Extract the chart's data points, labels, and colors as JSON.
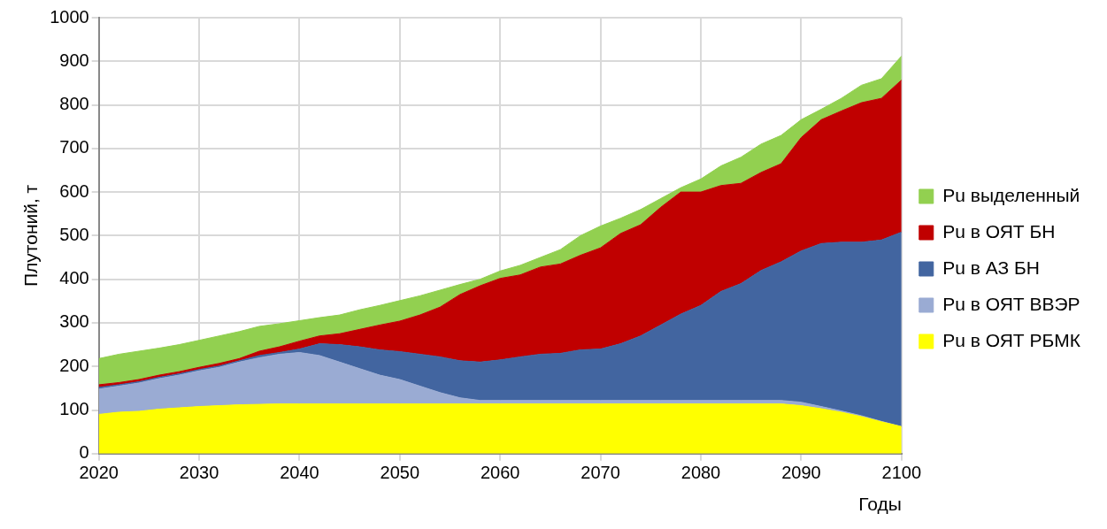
{
  "chart_data": {
    "type": "area",
    "stacked": true,
    "xlabel": "Годы",
    "ylabel": "Плутоний, т",
    "x": [
      2020,
      2022,
      2024,
      2026,
      2028,
      2030,
      2032,
      2034,
      2036,
      2038,
      2040,
      2042,
      2044,
      2046,
      2048,
      2050,
      2052,
      2054,
      2056,
      2058,
      2060,
      2062,
      2064,
      2066,
      2068,
      2070,
      2072,
      2074,
      2076,
      2078,
      2080,
      2082,
      2084,
      2086,
      2088,
      2090,
      2092,
      2094,
      2096,
      2098,
      2100
    ],
    "series": [
      {
        "name": "Pu в ОЯТ РБМК",
        "color": "#ffff00",
        "values": [
          90,
          95,
          97,
          102,
          105,
          108,
          110,
          112,
          113,
          114,
          114,
          114,
          114,
          114,
          114,
          114,
          114,
          114,
          114,
          114,
          114,
          114,
          114,
          114,
          114,
          114,
          114,
          114,
          114,
          114,
          114,
          114,
          114,
          114,
          114,
          110,
          103,
          95,
          85,
          73,
          62
        ]
      },
      {
        "name": "Pu в ОЯТ ВВЭР",
        "color": "#9aabd3",
        "values": [
          58,
          60,
          65,
          70,
          75,
          82,
          88,
          98,
          107,
          114,
          118,
          111,
          96,
          81,
          66,
          56,
          41,
          26,
          14,
          8,
          8,
          8,
          8,
          8,
          8,
          8,
          8,
          8,
          8,
          8,
          8,
          8,
          8,
          8,
          8,
          8,
          5,
          3,
          2,
          1,
          0
        ]
      },
      {
        "name": "Pu в АЗ БН",
        "color": "#4265a0",
        "values": [
          4,
          3,
          3,
          3,
          3,
          3,
          3,
          3,
          5,
          4,
          8,
          27,
          40,
          50,
          58,
          64,
          73,
          82,
          85,
          88,
          93,
          100,
          106,
          108,
          116,
          118,
          130,
          148,
          173,
          198,
          218,
          250,
          268,
          298,
          318,
          347,
          374,
          387,
          398,
          416,
          446
        ]
      },
      {
        "name": "Pu в ОЯТ БН",
        "color": "#c00000",
        "values": [
          6,
          5,
          5,
          5,
          5,
          5,
          6,
          5,
          10,
          13,
          18,
          18,
          25,
          40,
          57,
          70,
          90,
          114,
          152,
          175,
          187,
          188,
          200,
          205,
          217,
          232,
          253,
          255,
          270,
          280,
          260,
          243,
          230,
          225,
          225,
          260,
          284,
          301,
          320,
          325,
          349
        ]
      },
      {
        "name": "Pu выделенный",
        "color": "#92d050",
        "values": [
          60,
          65,
          65,
          62,
          62,
          62,
          63,
          62,
          57,
          53,
          47,
          42,
          43,
          45,
          45,
          47,
          44,
          39,
          23,
          15,
          17,
          22,
          22,
          33,
          45,
          50,
          35,
          35,
          20,
          10,
          30,
          45,
          60,
          65,
          65,
          41,
          24,
          29,
          40,
          45,
          55
        ]
      }
    ],
    "xlim": [
      2020,
      2100
    ],
    "xticks": [
      2020,
      2030,
      2040,
      2050,
      2060,
      2070,
      2080,
      2090,
      2100
    ],
    "ylim": [
      0,
      1000
    ],
    "yticks": [
      0,
      100,
      200,
      300,
      400,
      500,
      600,
      700,
      800,
      900,
      1000
    ],
    "grid": true,
    "legend": "right",
    "marker": "none"
  }
}
